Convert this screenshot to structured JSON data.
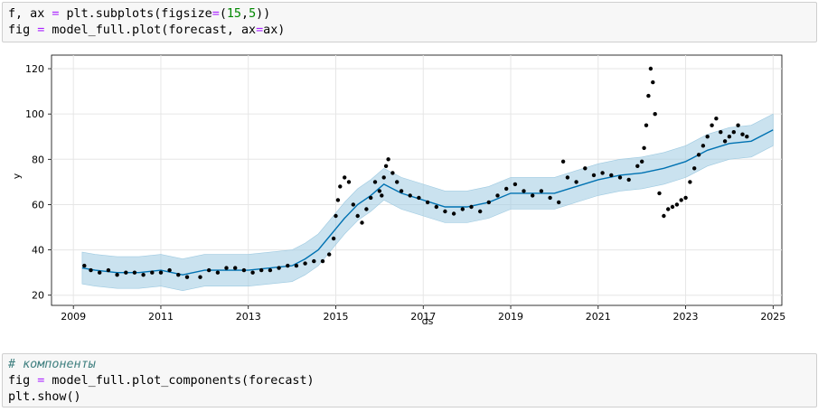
{
  "cell1": {
    "line1": [
      "f, ax ",
      "=",
      " plt.subplots(figsize",
      "=",
      "(",
      "15",
      ",",
      "5",
      "))"
    ],
    "line2": [
      "fig ",
      "=",
      " model_full.plot(forecast, ax",
      "=",
      "ax)"
    ]
  },
  "cell2": {
    "comment": "# компоненты",
    "line2": [
      "fig ",
      "=",
      " model_full.plot_components(forecast)"
    ],
    "line3": "plt.show()"
  },
  "chart_data": {
    "type": "line",
    "xlabel": "ds",
    "ylabel": "y",
    "xlim": [
      2008.5,
      2025.2
    ],
    "ylim": [
      15.5,
      126
    ],
    "x_ticks": [
      2009,
      2011,
      2013,
      2015,
      2017,
      2019,
      2021,
      2023,
      2025
    ],
    "y_ticks": [
      20,
      40,
      60,
      80,
      100,
      120
    ],
    "grid": true,
    "colors": {
      "forecast_line": "#0072b2",
      "uncertainty_band": "#9ecae1",
      "observed": "#000000"
    },
    "forecast": {
      "x": [
        2009.2,
        2009.5,
        2010,
        2010.5,
        2011,
        2011.5,
        2012,
        2012.5,
        2013,
        2013.5,
        2014,
        2014.3,
        2014.6,
        2014.9,
        2015.2,
        2015.5,
        2015.8,
        2016.1,
        2016.5,
        2017,
        2017.5,
        2018,
        2018.5,
        2019,
        2019.5,
        2020,
        2020.5,
        2021,
        2021.5,
        2022,
        2022.5,
        2023,
        2023.5,
        2024,
        2024.5,
        2025
      ],
      "y": [
        32,
        31,
        30,
        30,
        31,
        29,
        31,
        31,
        31,
        32,
        33,
        36,
        40,
        47,
        54,
        60,
        64,
        69,
        65,
        62,
        59,
        59,
        61,
        65,
        65,
        65,
        68,
        71,
        73,
        74,
        76,
        79,
        84,
        87,
        88,
        93
      ]
    },
    "band_halfwidth": 7,
    "observed": {
      "x": [
        2009.25,
        2009.4,
        2009.6,
        2009.8,
        2010.0,
        2010.2,
        2010.4,
        2010.6,
        2010.8,
        2011.0,
        2011.2,
        2011.4,
        2011.6,
        2011.9,
        2012.1,
        2012.3,
        2012.5,
        2012.7,
        2012.9,
        2013.1,
        2013.3,
        2013.5,
        2013.7,
        2013.9,
        2014.1,
        2014.3,
        2014.5,
        2014.7,
        2014.85,
        2014.95,
        2015.0,
        2015.05,
        2015.1,
        2015.2,
        2015.3,
        2015.4,
        2015.5,
        2015.6,
        2015.7,
        2015.8,
        2015.9,
        2016.0,
        2016.05,
        2016.1,
        2016.15,
        2016.2,
        2016.3,
        2016.4,
        2016.5,
        2016.7,
        2016.9,
        2017.1,
        2017.3,
        2017.5,
        2017.7,
        2017.9,
        2018.1,
        2018.3,
        2018.5,
        2018.7,
        2018.9,
        2019.1,
        2019.3,
        2019.5,
        2019.7,
        2019.9,
        2020.1,
        2020.2,
        2020.3,
        2020.5,
        2020.7,
        2020.9,
        2021.1,
        2021.3,
        2021.5,
        2021.7,
        2021.9,
        2022.0,
        2022.05,
        2022.1,
        2022.15,
        2022.2,
        2022.25,
        2022.3,
        2022.4,
        2022.5,
        2022.6,
        2022.7,
        2022.8,
        2022.9,
        2023.0,
        2023.1,
        2023.2,
        2023.3,
        2023.4,
        2023.5,
        2023.6,
        2023.7,
        2023.8,
        2023.9,
        2024.0,
        2024.1,
        2024.2,
        2024.3,
        2024.4
      ],
      "y": [
        33,
        31,
        30,
        31,
        29,
        30,
        30,
        29,
        30,
        30,
        31,
        29,
        28,
        28,
        31,
        30,
        32,
        32,
        31,
        30,
        31,
        31,
        32,
        33,
        33,
        34,
        35,
        35,
        38,
        45,
        55,
        62,
        68,
        72,
        70,
        60,
        55,
        52,
        58,
        63,
        70,
        66,
        64,
        72,
        77,
        80,
        74,
        70,
        66,
        64,
        63,
        61,
        59,
        57,
        56,
        58,
        59,
        57,
        61,
        64,
        67,
        69,
        66,
        64,
        66,
        63,
        61,
        79,
        72,
        70,
        76,
        73,
        74,
        73,
        72,
        71,
        77,
        79,
        85,
        95,
        108,
        120,
        114,
        100,
        65,
        55,
        58,
        59,
        60,
        62,
        63,
        70,
        76,
        82,
        86,
        90,
        95,
        98,
        92,
        88,
        90,
        92,
        95,
        91,
        90
      ]
    }
  }
}
